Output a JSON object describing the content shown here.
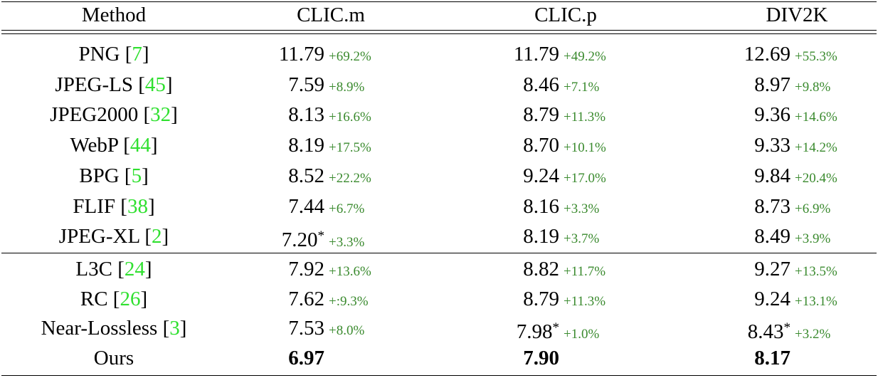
{
  "table": {
    "header": [
      "Method",
      "CLIC.m",
      "CLIC.p",
      "DIV2K"
    ],
    "rows": [
      {
        "method": "PNG",
        "cite": "[7]",
        "cells": [
          {
            "value": "11.79",
            "delta": "+69.2%"
          },
          {
            "value": "11.79",
            "delta": "+49.2%"
          },
          {
            "value": "12.69",
            "delta": "+55.3%"
          }
        ]
      },
      {
        "method": "JPEG-LS",
        "cite": "[45]",
        "cells": [
          {
            "value": "7.59",
            "delta": "+8.9%"
          },
          {
            "value": "8.46",
            "delta": "+7.1%"
          },
          {
            "value": "8.97",
            "delta": "+9.8%"
          }
        ]
      },
      {
        "method": "JPEG2000",
        "cite": "[32]",
        "cells": [
          {
            "value": "8.13",
            "delta": "+16.6%"
          },
          {
            "value": "8.79",
            "delta": "+11.3%"
          },
          {
            "value": "9.36",
            "delta": "+14.6%"
          }
        ]
      },
      {
        "method": "WebP",
        "cite": "[44]",
        "cells": [
          {
            "value": "8.19",
            "delta": "+17.5%"
          },
          {
            "value": "8.70",
            "delta": "+10.1%"
          },
          {
            "value": "9.33",
            "delta": "+14.2%"
          }
        ]
      },
      {
        "method": "BPG",
        "cite": "[5]",
        "cells": [
          {
            "value": "8.52",
            "delta": "+22.2%"
          },
          {
            "value": "9.24",
            "delta": "+17.0%"
          },
          {
            "value": "9.84",
            "delta": "+20.4%"
          }
        ]
      },
      {
        "method": "FLIF",
        "cite": "[38]",
        "cells": [
          {
            "value": "7.44",
            "delta": "+6.7%"
          },
          {
            "value": "8.16",
            "delta": "+3.3%"
          },
          {
            "value": "8.73",
            "delta": "+6.9%"
          }
        ]
      },
      {
        "method": "JPEG-XL",
        "cite": "[2]",
        "cells": [
          {
            "value": "7.20",
            "note": "*",
            "delta": "+3.3%"
          },
          {
            "value": "8.19",
            "delta": "+3.7%"
          },
          {
            "value": "8.49",
            "delta": "+3.9%"
          }
        ]
      },
      {
        "method": "L3C",
        "cite": "[24]",
        "cells": [
          {
            "value": "7.92",
            "delta": "+13.6%"
          },
          {
            "value": "8.82",
            "delta": "+11.7%"
          },
          {
            "value": "9.27",
            "delta": "+13.5%"
          }
        ]
      },
      {
        "method": "RC",
        "cite": "[26]",
        "cells": [
          {
            "value": "7.62",
            "delta": "+:9.3%"
          },
          {
            "value": "8.79",
            "delta": "+11.3%"
          },
          {
            "value": "9.24",
            "delta": "+13.1%"
          }
        ]
      },
      {
        "method": "Near-Lossless",
        "cite": "[3]",
        "cells": [
          {
            "value": "7.53",
            "delta": "+8.0%"
          },
          {
            "value": "7.98",
            "note": "*",
            "delta": "+1.0%"
          },
          {
            "value": "8.43",
            "note": "*",
            "delta": "+3.2%"
          }
        ]
      },
      {
        "method": "Ours",
        "bold": true,
        "cells": [
          {
            "value": "6.97"
          },
          {
            "value": "7.90"
          },
          {
            "value": "8.17"
          }
        ]
      }
    ]
  }
}
